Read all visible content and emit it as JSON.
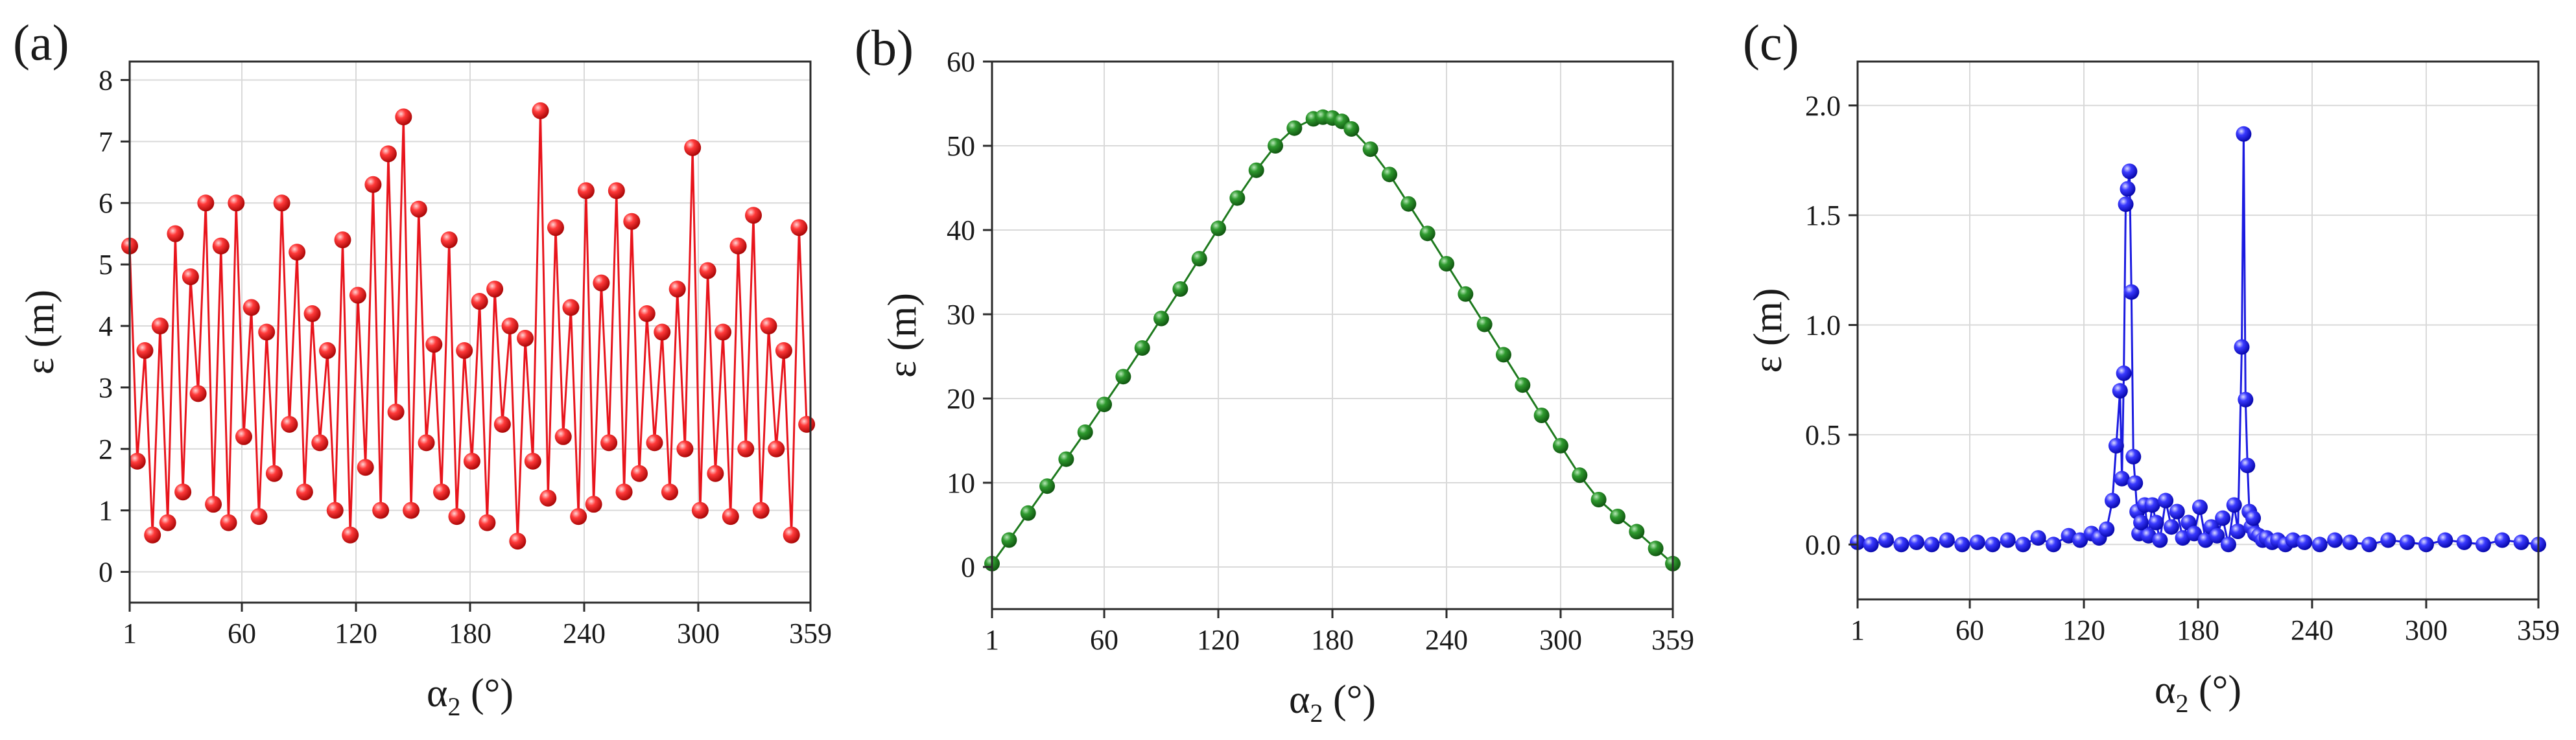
{
  "chart_data": [
    {
      "panel_label": "(a)",
      "type": "line",
      "marker": "sphere",
      "xlabel": "α2 (°)",
      "ylabel": "ε (m)",
      "xlim": [
        1,
        359
      ],
      "ylim": [
        -0.5,
        8.3
      ],
      "xticks": [
        1,
        60,
        120,
        180,
        240,
        300,
        359
      ],
      "yticks": [
        0,
        1,
        2,
        3,
        4,
        5,
        6,
        7,
        8
      ],
      "grid": true,
      "color": "#e8141c",
      "series": [
        {
          "x": [
            1,
            5,
            9,
            13,
            17,
            21,
            25,
            29,
            33,
            37,
            41,
            45,
            49,
            53,
            57,
            61,
            65,
            69,
            73,
            77,
            81,
            85,
            89,
            93,
            97,
            101,
            105,
            109,
            113,
            117,
            121,
            125,
            129,
            133,
            137,
            141,
            145,
            149,
            153,
            157,
            161,
            165,
            169,
            173,
            177,
            181,
            185,
            189,
            193,
            197,
            201,
            205,
            209,
            213,
            217,
            221,
            225,
            229,
            233,
            237,
            241,
            245,
            249,
            253,
            257,
            261,
            265,
            269,
            273,
            277,
            281,
            285,
            289,
            293,
            297,
            301,
            305,
            309,
            313,
            317,
            321,
            325,
            329,
            333,
            337,
            341,
            345,
            349,
            353,
            357
          ],
          "y": [
            5.3,
            1.8,
            3.6,
            0.6,
            4.0,
            0.8,
            5.5,
            1.3,
            4.8,
            2.9,
            6.0,
            1.1,
            5.3,
            0.8,
            6.0,
            2.2,
            4.3,
            0.9,
            3.9,
            1.6,
            6.0,
            2.4,
            5.2,
            1.3,
            4.2,
            2.1,
            3.6,
            1.0,
            5.4,
            0.6,
            4.5,
            1.7,
            6.3,
            1.0,
            6.8,
            2.6,
            7.4,
            1.0,
            5.9,
            2.1,
            3.7,
            1.3,
            5.4,
            0.9,
            3.6,
            1.8,
            4.4,
            0.8,
            4.6,
            2.4,
            4.0,
            0.5,
            3.8,
            1.8,
            7.5,
            1.2,
            5.6,
            2.2,
            4.3,
            0.9,
            6.2,
            1.1,
            4.7,
            2.1,
            6.2,
            1.3,
            5.7,
            1.6,
            4.2,
            2.1,
            3.9,
            1.3,
            4.6,
            2.0,
            6.9,
            1.0,
            4.9,
            1.6,
            3.9,
            0.9,
            5.3,
            2.0,
            5.8,
            1.0,
            4.0,
            2.0,
            3.6,
            0.6,
            5.6,
            2.4
          ]
        }
      ]
    },
    {
      "panel_label": "(b)",
      "type": "line",
      "marker": "sphere",
      "xlabel": "α2 (°)",
      "ylabel": "ε (m)",
      "xlim": [
        1,
        359
      ],
      "ylim": [
        -5,
        60
      ],
      "xticks": [
        1,
        60,
        120,
        180,
        240,
        300,
        359
      ],
      "yticks": [
        0,
        10,
        20,
        30,
        40,
        50,
        60
      ],
      "grid": true,
      "color": "#1e7a1e",
      "series": [
        {
          "x": [
            1,
            10,
            20,
            30,
            40,
            50,
            60,
            70,
            80,
            90,
            100,
            110,
            120,
            130,
            140,
            150,
            160,
            170,
            175,
            180,
            185,
            190,
            200,
            210,
            220,
            230,
            240,
            250,
            260,
            270,
            280,
            290,
            300,
            310,
            320,
            330,
            340,
            350,
            359
          ],
          "y": [
            0.4,
            3.2,
            6.4,
            9.6,
            12.8,
            16.0,
            19.3,
            22.6,
            26.0,
            29.5,
            33.0,
            36.6,
            40.2,
            43.8,
            47.1,
            50.0,
            52.1,
            53.2,
            53.4,
            53.3,
            52.9,
            52.0,
            49.6,
            46.6,
            43.1,
            39.6,
            36.0,
            32.4,
            28.8,
            25.2,
            21.6,
            18.0,
            14.4,
            10.9,
            8.0,
            6.0,
            4.2,
            2.2,
            0.4
          ]
        }
      ]
    },
    {
      "panel_label": "(c)",
      "type": "line",
      "marker": "sphere",
      "xlabel": "α2 (°)",
      "ylabel": "ε (m)",
      "xlim": [
        1,
        359
      ],
      "ylim": [
        -0.25,
        2.2
      ],
      "xticks": [
        1,
        60,
        120,
        180,
        240,
        300,
        359
      ],
      "yticks": [
        0.0,
        0.5,
        1.0,
        1.5,
        2.0
      ],
      "ytick_labels": [
        "0.0",
        "0.5",
        "1.0",
        "1.5",
        "2.0"
      ],
      "grid": true,
      "color": "#1a1ae0",
      "series": [
        {
          "x": [
            1,
            8,
            16,
            24,
            32,
            40,
            48,
            56,
            64,
            72,
            80,
            88,
            96,
            104,
            112,
            118,
            124,
            128,
            132,
            135,
            137,
            139,
            140,
            141,
            142,
            143,
            144,
            145,
            146,
            147,
            148,
            149,
            150,
            152,
            154,
            156,
            158,
            160,
            163,
            166,
            169,
            172,
            175,
            178,
            181,
            184,
            187,
            190,
            193,
            196,
            199,
            201,
            203,
            204,
            205,
            206,
            207,
            208,
            209,
            210,
            212,
            214,
            216,
            219,
            222,
            226,
            230,
            236,
            244,
            252,
            260,
            270,
            280,
            290,
            300,
            310,
            320,
            330,
            340,
            350,
            359
          ],
          "y": [
            0.01,
            0.0,
            0.02,
            0.0,
            0.01,
            0.0,
            0.02,
            0.0,
            0.01,
            0.0,
            0.02,
            0.0,
            0.03,
            0.0,
            0.04,
            0.02,
            0.05,
            0.03,
            0.07,
            0.2,
            0.45,
            0.7,
            0.3,
            0.78,
            1.55,
            1.62,
            1.7,
            1.15,
            0.4,
            0.28,
            0.15,
            0.05,
            0.1,
            0.18,
            0.04,
            0.18,
            0.1,
            0.02,
            0.2,
            0.08,
            0.15,
            0.03,
            0.1,
            0.05,
            0.17,
            0.02,
            0.08,
            0.04,
            0.12,
            0.0,
            0.18,
            0.06,
            0.9,
            1.87,
            0.66,
            0.36,
            0.15,
            0.08,
            0.12,
            0.05,
            0.04,
            0.02,
            0.03,
            0.01,
            0.02,
            0.0,
            0.02,
            0.01,
            0.0,
            0.02,
            0.01,
            0.0,
            0.02,
            0.01,
            0.0,
            0.02,
            0.01,
            0.0,
            0.02,
            0.01,
            0.0
          ]
        }
      ]
    }
  ]
}
